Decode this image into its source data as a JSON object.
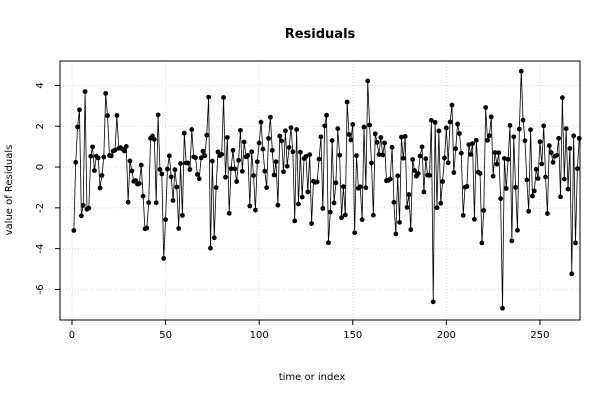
{
  "chart_data": {
    "type": "scatter",
    "style": "points connected by lines",
    "title": "Residuals",
    "xlabel": "time or index",
    "ylabel": "value of Residuals",
    "xlim": [
      -6.4,
      271.4
    ],
    "ylim": [
      -7.5,
      5.2
    ],
    "xticks": [
      0,
      50,
      100,
      150,
      200,
      250
    ],
    "yticks": [
      -6,
      -4,
      -2,
      0,
      2,
      4
    ],
    "grid": "dotted",
    "x_start": 1,
    "series": [
      {
        "values": [
          -3.11,
          0.23,
          1.97,
          2.81,
          -2.39,
          -1.88,
          3.7,
          -2.07,
          -2.01,
          0.53,
          0.99,
          -0.17,
          0.53,
          0.45,
          -1.03,
          -0.41,
          0.49,
          3.61,
          2.52,
          0.57,
          0.55,
          0.78,
          0.83,
          2.53,
          0.92,
          0.95,
          0.89,
          0.79,
          1.01,
          -1.72,
          0.3,
          -0.19,
          -0.7,
          -0.66,
          -0.84,
          -0.81,
          0.09,
          -1.43,
          -3.03,
          -2.99,
          -1.74,
          1.41,
          1.52,
          1.35,
          -1.75,
          2.56,
          -0.12,
          -0.34,
          -4.48,
          -2.58,
          -0.1,
          0.55,
          -0.48,
          -1.64,
          -0.13,
          -0.98,
          -3.01,
          0.17,
          -2.37,
          1.66,
          0.2,
          0.2,
          -0.12,
          1.84,
          0.5,
          0.46,
          -0.36,
          -0.57,
          0.45,
          0.78,
          0.56,
          1.56,
          3.43,
          -3.98,
          0.29,
          -3.47,
          -1.01,
          0.74,
          0.56,
          0.62,
          3.41,
          -0.5,
          1.45,
          -2.27,
          -0.08,
          0.82,
          -0.09,
          -0.71,
          0.33,
          1.8,
          -0.21,
          1.23,
          0.5,
          0.57,
          -1.91,
          0.75,
          -0.42,
          -2.11,
          0.26,
          1.18,
          2.2,
          0.88,
          -0.2,
          -1.01,
          1.4,
          2.44,
          0.82,
          -0.39,
          0.26,
          -1.87,
          1.52,
          1.28,
          -0.23,
          1.78,
          0.04,
          0.96,
          1.93,
          0.75,
          -2.64,
          1.84,
          -1.81,
          0.73,
          -1.47,
          0.42,
          0.52,
          -1.22,
          0.61,
          -2.77,
          -0.7,
          -0.75,
          -0.73,
          0.39,
          1.48,
          -2.03,
          2.02,
          2.54,
          -3.71,
          -2.21,
          1.3,
          -1.76,
          -0.77,
          1.88,
          0.58,
          -2.48,
          -0.96,
          -2.35,
          3.19,
          1.6,
          1.33,
          2.09,
          -3.22,
          0.56,
          -1.04,
          -0.97,
          -2.58,
          1.96,
          -1.01,
          4.22,
          2.06,
          0.2,
          -2.36,
          1.63,
          1.21,
          0.61,
          1.45,
          0.59,
          1.18,
          -0.67,
          -0.65,
          -0.59,
          0.97,
          -1.73,
          -3.28,
          -0.43,
          -2.71,
          1.47,
          0.43,
          1.5,
          -1.98,
          -1.35,
          -3.07,
          0.37,
          -0.17,
          -0.45,
          -0.32,
          0.54,
          0.99,
          -1.22,
          0.41,
          -0.4,
          -0.41,
          2.29,
          -6.61,
          2.19,
          -1.99,
          1.77,
          -1.78,
          -0.71,
          0.44,
          1.92,
          0.21,
          2.21,
          3.04,
          -0.27,
          0.9,
          2.11,
          1.64,
          0.68,
          -2.37,
          -0.99,
          -0.95,
          1.1,
          0.62,
          1.15,
          -2.56,
          1.31,
          -0.25,
          -0.31,
          -3.72,
          -2.13,
          2.92,
          1.31,
          1.54,
          2.46,
          -0.45,
          0.71,
          0.14,
          0.7,
          -1.55,
          -6.92,
          0.42,
          -1.05,
          0.38,
          2.04,
          -3.62,
          1.48,
          -1.0,
          -3.1,
          1.86,
          4.7,
          2.3,
          1.29,
          -0.63,
          -2.17,
          1.83,
          -1.42,
          -1.17,
          -0.11,
          -0.56,
          1.24,
          0.15,
          2.02,
          -0.49,
          -2.28,
          1.05,
          0.71,
          0.23,
          0.53,
          0.58,
          1.41,
          -1.46,
          3.4,
          -0.59,
          1.88,
          -1.08,
          0.91,
          -5.24,
          1.53,
          -3.72,
          -0.08,
          1.41
        ]
      }
    ]
  }
}
